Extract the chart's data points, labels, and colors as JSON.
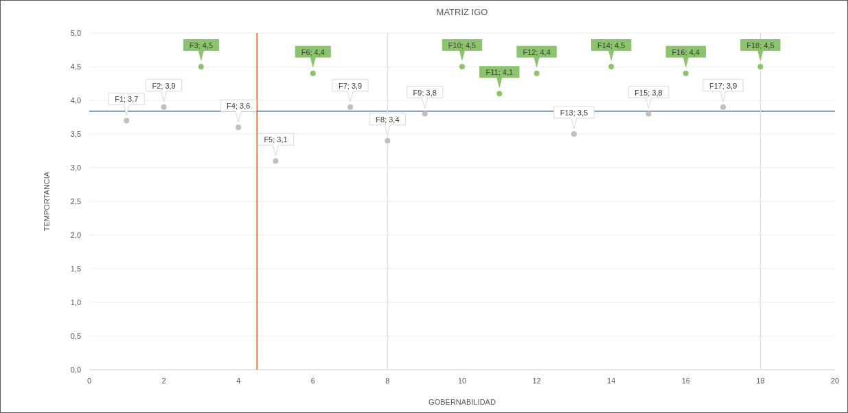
{
  "chart_data": {
    "type": "scatter",
    "title": "MATRIZ IGO",
    "xlabel": "GOBERNABILIDAD",
    "ylabel": "TEMPORTANCIA",
    "xlim": [
      0,
      20
    ],
    "xticks": [
      0,
      2,
      4,
      6,
      8,
      10,
      12,
      14,
      16,
      18,
      20
    ],
    "ylim": [
      0,
      5
    ],
    "yticks": [
      {
        "value": 0,
        "label": "0,0"
      },
      {
        "value": 0.5,
        "label": "0,5"
      },
      {
        "value": 1,
        "label": "1,0"
      },
      {
        "value": 1.5,
        "label": "1,5"
      },
      {
        "value": 2,
        "label": "2,0"
      },
      {
        "value": 2.5,
        "label": "2,5"
      },
      {
        "value": 3,
        "label": "3,0"
      },
      {
        "value": 3.5,
        "label": "3,5"
      },
      {
        "value": 4,
        "label": "4,0"
      },
      {
        "value": 4.5,
        "label": "4,5"
      },
      {
        "value": 5,
        "label": "5,0"
      }
    ],
    "grid": "y",
    "marker": "circle",
    "x": [
      1,
      2,
      3,
      4,
      5,
      6,
      7,
      8,
      9,
      10,
      11,
      12,
      13,
      14,
      15,
      16,
      17,
      18
    ],
    "values": [
      3.7,
      3.9,
      4.5,
      3.6,
      3.1,
      4.4,
      3.9,
      3.4,
      3.8,
      4.5,
      4.1,
      4.4,
      3.5,
      4.5,
      3.8,
      4.4,
      3.9,
      4.5
    ],
    "value_labels": [
      "F1; 3,7",
      "F2; 3,9",
      "F3; 4,5",
      "F4; 3,6",
      "F5; 3,1",
      "F6; 4,4",
      "F7; 3,9",
      "F8; 3,4",
      "F9; 3,8",
      "F10; 4,5",
      "F11; 4,1",
      "F12; 4,4",
      "F13; 3,5",
      "F14; 4,5",
      "F15; 3,8",
      "F16; 4,4",
      "F17; 3,9",
      "F18; 4,5"
    ],
    "colors": [
      "#bfbfbf",
      "#bfbfbf",
      "#8cc46e",
      "#bfbfbf",
      "#bfbfbf",
      "#8cc46e",
      "#bfbfbf",
      "#bfbfbf",
      "#bfbfbf",
      "#8cc46e",
      "#8cc46e",
      "#8cc46e",
      "#bfbfbf",
      "#8cc46e",
      "#bfbfbf",
      "#8cc46e",
      "#bfbfbf",
      "#8cc46e"
    ],
    "ref_lines": [
      {
        "axis": "x",
        "value": 4.5,
        "color": "#ed7d31"
      },
      {
        "axis": "y",
        "value": 3.84,
        "color": "#4472c4"
      },
      {
        "axis": "x",
        "value": 8,
        "color": "#d9d9d9"
      },
      {
        "axis": "x",
        "value": 18,
        "color": "#d9d9d9"
      }
    ]
  }
}
